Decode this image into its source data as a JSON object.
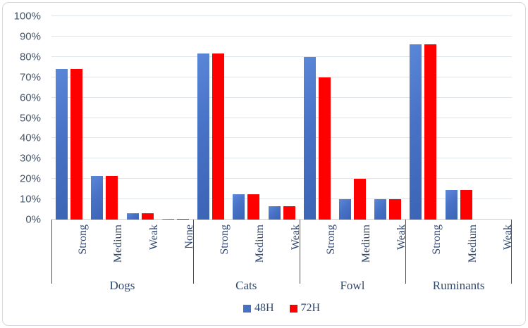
{
  "chart_data": {
    "type": "bar",
    "title": "",
    "xlabel": "",
    "ylabel": "",
    "ylim": [
      0,
      100
    ],
    "ytick_step": 10,
    "ytick_suffix": "%",
    "grid": true,
    "legend_position": "bottom",
    "groups": [
      {
        "label": "Dogs",
        "categories": [
          "Strong",
          "Medium",
          "Weak",
          "None"
        ]
      },
      {
        "label": "Cats",
        "categories": [
          "Strong",
          "Medium",
          "Weak"
        ]
      },
      {
        "label": "Fowl",
        "categories": [
          "Strong",
          "Medium",
          "Weak"
        ]
      },
      {
        "label": "Ruminants",
        "categories": [
          "Strong",
          "Medium",
          "Weak"
        ]
      }
    ],
    "series": [
      {
        "name": "48H",
        "color": "#4472c4",
        "values": [
          74,
          21.5,
          3,
          0.5,
          81.5,
          12.5,
          6.5,
          80,
          10,
          10,
          86,
          14.5,
          0
        ]
      },
      {
        "name": "72H",
        "color": "#fe0000",
        "values": [
          74,
          21.5,
          3,
          0.5,
          81.5,
          12.5,
          6.5,
          70,
          20,
          10,
          86,
          14.5,
          0
        ]
      }
    ]
  },
  "colors": {
    "grid": "#dde4ec",
    "axis_line": "#ccd3dc",
    "separator": "#4d4d4d",
    "tick_text": "#44546a",
    "label_text": "#31486e",
    "frame_border": "#d5d8de",
    "background": "#ffffff"
  }
}
